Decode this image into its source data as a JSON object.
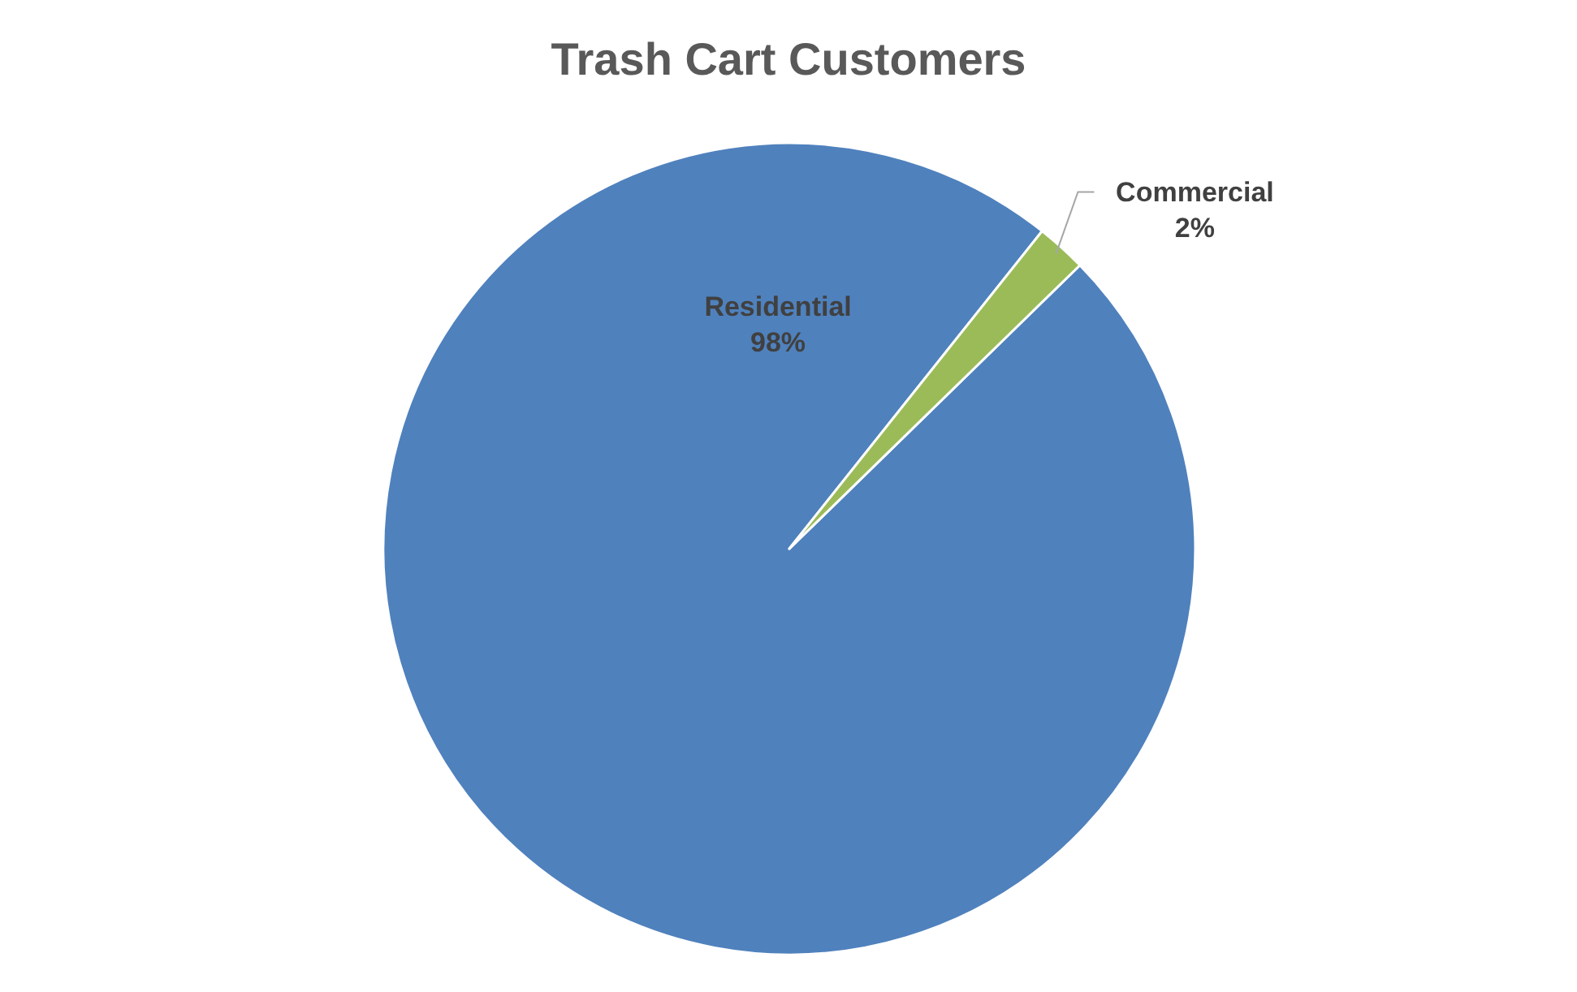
{
  "chart_data": {
    "type": "pie",
    "title": "Trash Cart Customers",
    "categories": [
      "Residential",
      "Commercial"
    ],
    "values": [
      98,
      2
    ],
    "colors": [
      "#4f81bd",
      "#9bbb59"
    ],
    "value_labels": [
      "98%",
      "2%"
    ]
  }
}
